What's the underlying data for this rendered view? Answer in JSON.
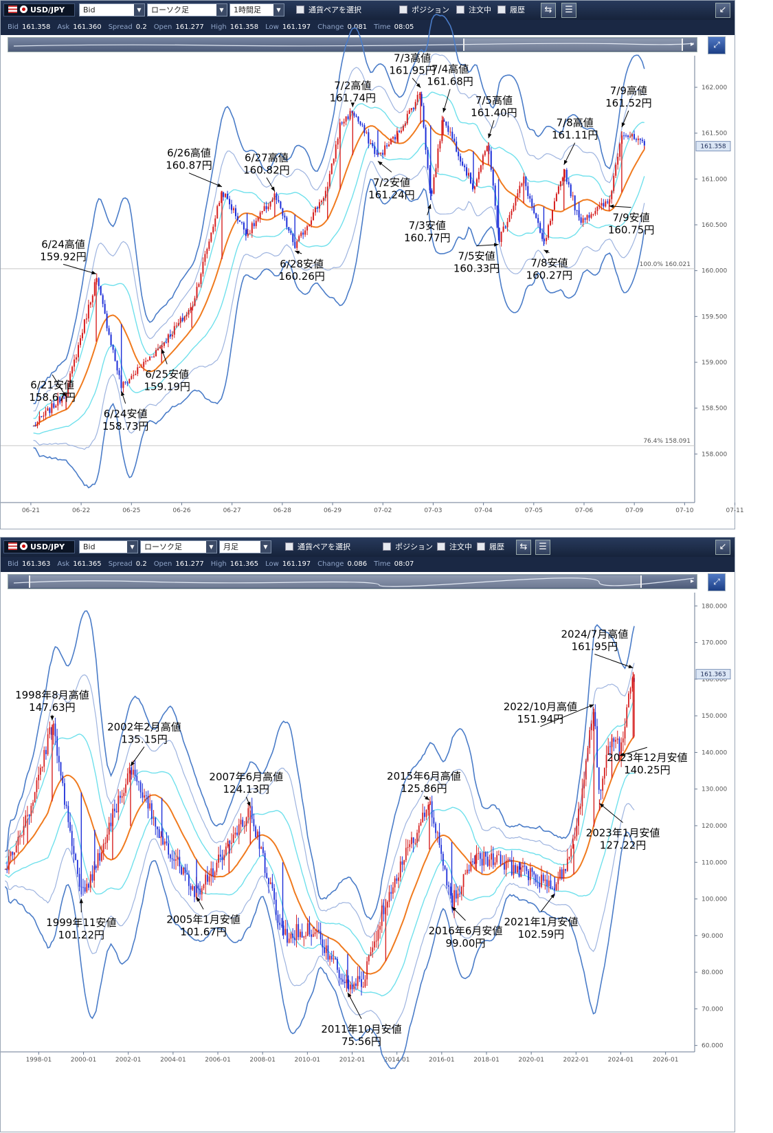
{
  "panels": [
    {
      "pair": "USD/JPY",
      "price_type": "Bid",
      "chart_style": "ローソク足",
      "timeframe": "1時間足",
      "pair_select_label": "通貨ペアを選択",
      "checkboxes": [
        "ポジション",
        "注文中",
        "履歴"
      ],
      "info": [
        {
          "k": "Bid",
          "v": "161.358"
        },
        {
          "k": "Ask",
          "v": "161.360"
        },
        {
          "k": "Spread",
          "v": "0.2"
        },
        {
          "k": "Open",
          "v": "161.277"
        },
        {
          "k": "High",
          "v": "161.358"
        },
        {
          "k": "Low",
          "v": "161.197"
        },
        {
          "k": "Change",
          "v": "0.081"
        },
        {
          "k": "Time",
          "v": "08:05"
        }
      ]
    },
    {
      "pair": "USD/JPY",
      "price_type": "Bid",
      "chart_style": "ローソク足",
      "timeframe": "月足",
      "pair_select_label": "通貨ペアを選択",
      "checkboxes": [
        "ポジション",
        "注文中",
        "履歴"
      ],
      "info": [
        {
          "k": "Bid",
          "v": "161.363"
        },
        {
          "k": "Ask",
          "v": "161.365"
        },
        {
          "k": "Spread",
          "v": "0.2"
        },
        {
          "k": "Open",
          "v": "161.277"
        },
        {
          "k": "High",
          "v": "161.365"
        },
        {
          "k": "Low",
          "v": "161.197"
        },
        {
          "k": "Change",
          "v": "0.086"
        },
        {
          "k": "Time",
          "v": "08:07"
        }
      ]
    }
  ],
  "colors": {
    "up": "#d62020",
    "down": "#1c2ed8",
    "ma": "#f07a1e",
    "band1": "#6fe0ec",
    "band2": "#9db3df",
    "band3": "#4a7cc8"
  },
  "chart_data": [
    {
      "type": "candlestick",
      "timeframe": "1時間足",
      "ylim": [
        157.5,
        162.3
      ],
      "yticks": [
        "158.000",
        "158.500",
        "159.000",
        "159.500",
        "160.000",
        "160.500",
        "161.000",
        "161.500",
        "162.000"
      ],
      "xticks": [
        "06-21",
        "06-22",
        "06-25",
        "06-26",
        "06-27",
        "06-28",
        "06-29",
        "07-02",
        "07-03",
        "07-04",
        "07-05",
        "07-06",
        "07-09",
        "07-10",
        "07-11"
      ],
      "current_price": "161.358",
      "fib_lines": [
        {
          "pct": "100.0%",
          "value": "160.021"
        },
        {
          "pct": "76.4%",
          "value": "158.091"
        }
      ],
      "key_points": [
        {
          "day": 0.05,
          "price": 158.3
        },
        {
          "day": 0.7,
          "price": 158.67
        },
        {
          "day": 1.3,
          "price": 159.92
        },
        {
          "day": 1.8,
          "price": 158.73
        },
        {
          "day": 2.6,
          "price": 159.19
        },
        {
          "day": 3.2,
          "price": 159.6
        },
        {
          "day": 3.8,
          "price": 160.87
        },
        {
          "day": 4.3,
          "price": 160.4
        },
        {
          "day": 4.85,
          "price": 160.82
        },
        {
          "day": 5.25,
          "price": 160.26
        },
        {
          "day": 5.9,
          "price": 160.9
        },
        {
          "day": 6.15,
          "price": 161.6
        },
        {
          "day": 6.4,
          "price": 161.74
        },
        {
          "day": 6.9,
          "price": 161.24
        },
        {
          "day": 7.3,
          "price": 161.5
        },
        {
          "day": 7.75,
          "price": 161.95
        },
        {
          "day": 7.95,
          "price": 160.77
        },
        {
          "day": 8.2,
          "price": 161.68
        },
        {
          "day": 8.8,
          "price": 160.9
        },
        {
          "day": 9.1,
          "price": 161.4
        },
        {
          "day": 9.3,
          "price": 160.33
        },
        {
          "day": 9.8,
          "price": 161.0
        },
        {
          "day": 10.2,
          "price": 160.27
        },
        {
          "day": 10.6,
          "price": 161.11
        },
        {
          "day": 10.9,
          "price": 160.55
        },
        {
          "day": 11.5,
          "price": 160.75
        },
        {
          "day": 11.75,
          "price": 161.52
        },
        {
          "day": 12.2,
          "price": 161.36
        }
      ],
      "annotations": [
        {
          "line1": "6/21安値",
          "line2": "158.67円",
          "day": 0.7,
          "price": 158.67,
          "kind": "low"
        },
        {
          "line1": "6/24高値",
          "line2": "159.92円",
          "day": 1.3,
          "price": 159.92,
          "kind": "high"
        },
        {
          "line1": "6/24安値",
          "line2": "158.73円",
          "day": 1.8,
          "price": 158.73,
          "kind": "low"
        },
        {
          "line1": "6/25安値",
          "line2": "159.19円",
          "day": 2.6,
          "price": 159.19,
          "kind": "low"
        },
        {
          "line1": "6/26高値",
          "line2": "160.87円",
          "day": 3.8,
          "price": 160.87,
          "kind": "high"
        },
        {
          "line1": "6/27高値",
          "line2": "160.82円",
          "day": 4.85,
          "price": 160.82,
          "kind": "high"
        },
        {
          "line1": "6/28安値",
          "line2": "160.26円",
          "day": 5.25,
          "price": 160.26,
          "kind": "low"
        },
        {
          "line1": "7/2高値",
          "line2": "161.74円",
          "day": 6.4,
          "price": 161.74,
          "kind": "high"
        },
        {
          "line1": "7/2安値",
          "line2": "161.24円",
          "day": 6.9,
          "price": 161.24,
          "kind": "low"
        },
        {
          "line1": "7/3高値",
          "line2": "161.95円",
          "day": 7.75,
          "price": 161.95,
          "kind": "high"
        },
        {
          "line1": "7/3安値",
          "line2": "160.77円",
          "day": 7.95,
          "price": 160.77,
          "kind": "low"
        },
        {
          "line1": "7/4高値",
          "line2": "161.68円",
          "day": 8.2,
          "price": 161.68,
          "kind": "high"
        },
        {
          "line1": "7/5高値",
          "line2": "161.40円",
          "day": 9.1,
          "price": 161.4,
          "kind": "high"
        },
        {
          "line1": "7/5安値",
          "line2": "160.33円",
          "day": 9.3,
          "price": 160.33,
          "kind": "low"
        },
        {
          "line1": "7/8安値",
          "line2": "160.27円",
          "day": 10.2,
          "price": 160.27,
          "kind": "low"
        },
        {
          "line1": "7/8高値",
          "line2": "161.11円",
          "day": 10.6,
          "price": 161.11,
          "kind": "high"
        },
        {
          "line1": "7/9安値",
          "line2": "160.75円",
          "day": 11.5,
          "price": 160.75,
          "kind": "low"
        },
        {
          "line1": "7/9高値",
          "line2": "161.52円",
          "day": 11.75,
          "price": 161.52,
          "kind": "high"
        }
      ]
    },
    {
      "type": "candlestick",
      "timeframe": "月足",
      "ylim": [
        59,
        181
      ],
      "yticks": [
        "60.000",
        "70.000",
        "80.000",
        "90.000",
        "100.000",
        "110.000",
        "120.000",
        "130.000",
        "140.000",
        "150.000",
        "160.000",
        "170.000",
        "180.000"
      ],
      "xticks": [
        "1998-01",
        "2000-01",
        "2002-01",
        "2004-01",
        "2006-01",
        "2008-01",
        "2010-01",
        "2012-01",
        "2014-01",
        "2016-01",
        "2018-01",
        "2020-01",
        "2022-01",
        "2024-01",
        "2026-01"
      ],
      "current_price": "161.363",
      "key_points": [
        {
          "year": 1996.5,
          "price": 108
        },
        {
          "year": 1997.5,
          "price": 122
        },
        {
          "year": 1998.6,
          "price": 147.63
        },
        {
          "year": 1999.9,
          "price": 101.22
        },
        {
          "year": 2000.5,
          "price": 108
        },
        {
          "year": 2001.3,
          "price": 123
        },
        {
          "year": 2002.1,
          "price": 135.15
        },
        {
          "year": 2003.5,
          "price": 117
        },
        {
          "year": 2005.05,
          "price": 101.67
        },
        {
          "year": 2006.5,
          "price": 115
        },
        {
          "year": 2007.45,
          "price": 124.13
        },
        {
          "year": 2008.9,
          "price": 90
        },
        {
          "year": 2010.3,
          "price": 92
        },
        {
          "year": 2011.8,
          "price": 75.56
        },
        {
          "year": 2012.5,
          "price": 78
        },
        {
          "year": 2013.5,
          "price": 100
        },
        {
          "year": 2015.45,
          "price": 125.86
        },
        {
          "year": 2016.45,
          "price": 99.0
        },
        {
          "year": 2017.5,
          "price": 112
        },
        {
          "year": 2019.5,
          "price": 108
        },
        {
          "year": 2021.05,
          "price": 102.59
        },
        {
          "year": 2021.9,
          "price": 115
        },
        {
          "year": 2022.8,
          "price": 151.94
        },
        {
          "year": 2023.05,
          "price": 127.22
        },
        {
          "year": 2023.6,
          "price": 145
        },
        {
          "year": 2023.95,
          "price": 140.25
        },
        {
          "year": 2024.55,
          "price": 161.95
        },
        {
          "year": 2024.6,
          "price": 161.36
        }
      ],
      "annotations": [
        {
          "line1": "1998年8月高値",
          "line2": "147.63円",
          "year": 1998.6,
          "price": 147.63,
          "kind": "high"
        },
        {
          "line1": "1999年11安値",
          "line2": "101.22円",
          "year": 1999.9,
          "price": 101.22,
          "kind": "low"
        },
        {
          "line1": "2002年2月高値",
          "line2": "135.15円",
          "year": 2002.1,
          "price": 135.15,
          "kind": "high"
        },
        {
          "line1": "2005年1月安値",
          "line2": "101.67円",
          "year": 2005.05,
          "price": 101.67,
          "kind": "low"
        },
        {
          "line1": "2007年6月高値",
          "line2": "124.13円",
          "year": 2007.45,
          "price": 124.13,
          "kind": "high"
        },
        {
          "line1": "2011年10月安値",
          "line2": "75.56円",
          "year": 2011.8,
          "price": 75.56,
          "kind": "low"
        },
        {
          "line1": "2015年6月高値",
          "line2": "125.86円",
          "year": 2015.45,
          "price": 125.86,
          "kind": "high"
        },
        {
          "line1": "2016年6月安値",
          "line2": "99.00円",
          "year": 2016.45,
          "price": 99.0,
          "kind": "low"
        },
        {
          "line1": "2021年1月安値",
          "line2": "102.59円",
          "year": 2021.05,
          "price": 102.59,
          "kind": "low"
        },
        {
          "line1": "2022/10月高値",
          "line2": "151.94円",
          "year": 2022.8,
          "price": 151.94,
          "kind": "high"
        },
        {
          "line1": "2023年1月安値",
          "line2": "127.22円",
          "year": 2023.05,
          "price": 127.22,
          "kind": "low"
        },
        {
          "line1": "2023年12月安値",
          "line2": "140.25円",
          "year": 2023.95,
          "price": 140.25,
          "kind": "low"
        },
        {
          "line1": "2024/7月高値",
          "line2": "161.95円",
          "year": 2024.55,
          "price": 161.95,
          "kind": "high"
        }
      ]
    }
  ]
}
